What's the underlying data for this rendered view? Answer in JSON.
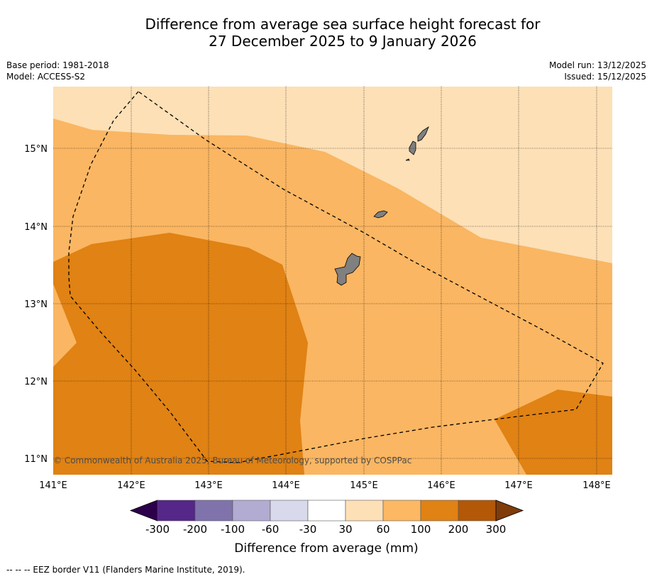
{
  "title_line1": "Difference from average sea surface height forecast for",
  "title_line2": "27 December 2025 to 9 January 2026",
  "base_period": "Base period: 1981-2018",
  "model": "Model: ACCESS-S2",
  "model_run": "Model run: 13/12/2025",
  "issued": "Issued: 15/12/2025",
  "copyright": "© Commonwealth of Australia 2025, Bureau of Meteorology, supported by COSPPac",
  "lon_labels": [
    "141°E",
    "142°E",
    "143°E",
    "144°E",
    "145°E",
    "146°E",
    "147°E",
    "148°E"
  ],
  "lat_labels": [
    "15°N",
    "14°N",
    "13°N",
    "12°N",
    "11°N"
  ],
  "colorbar": {
    "label": "Difference from average (mm)",
    "ticks": [
      "-300",
      "-200",
      "-100",
      "-60",
      "-30",
      "30",
      "60",
      "100",
      "200",
      "300"
    ],
    "colors": [
      "#542788",
      "#8073ac",
      "#b2abd2",
      "#d8daeb",
      "#ffffff",
      "#fee0b6",
      "#fdb863",
      "#e08214",
      "#b35806"
    ],
    "under_color": "#2d004b",
    "over_color": "#7f3b08"
  },
  "map_colors": {
    "band_30_60": "#fde0b6",
    "band_60_100": "#fab662",
    "band_100_200": "#e08214",
    "land": "#808080"
  },
  "footnote": "--  --  -- EEZ border V11 (Flanders Marine Institute, 2019)."
}
